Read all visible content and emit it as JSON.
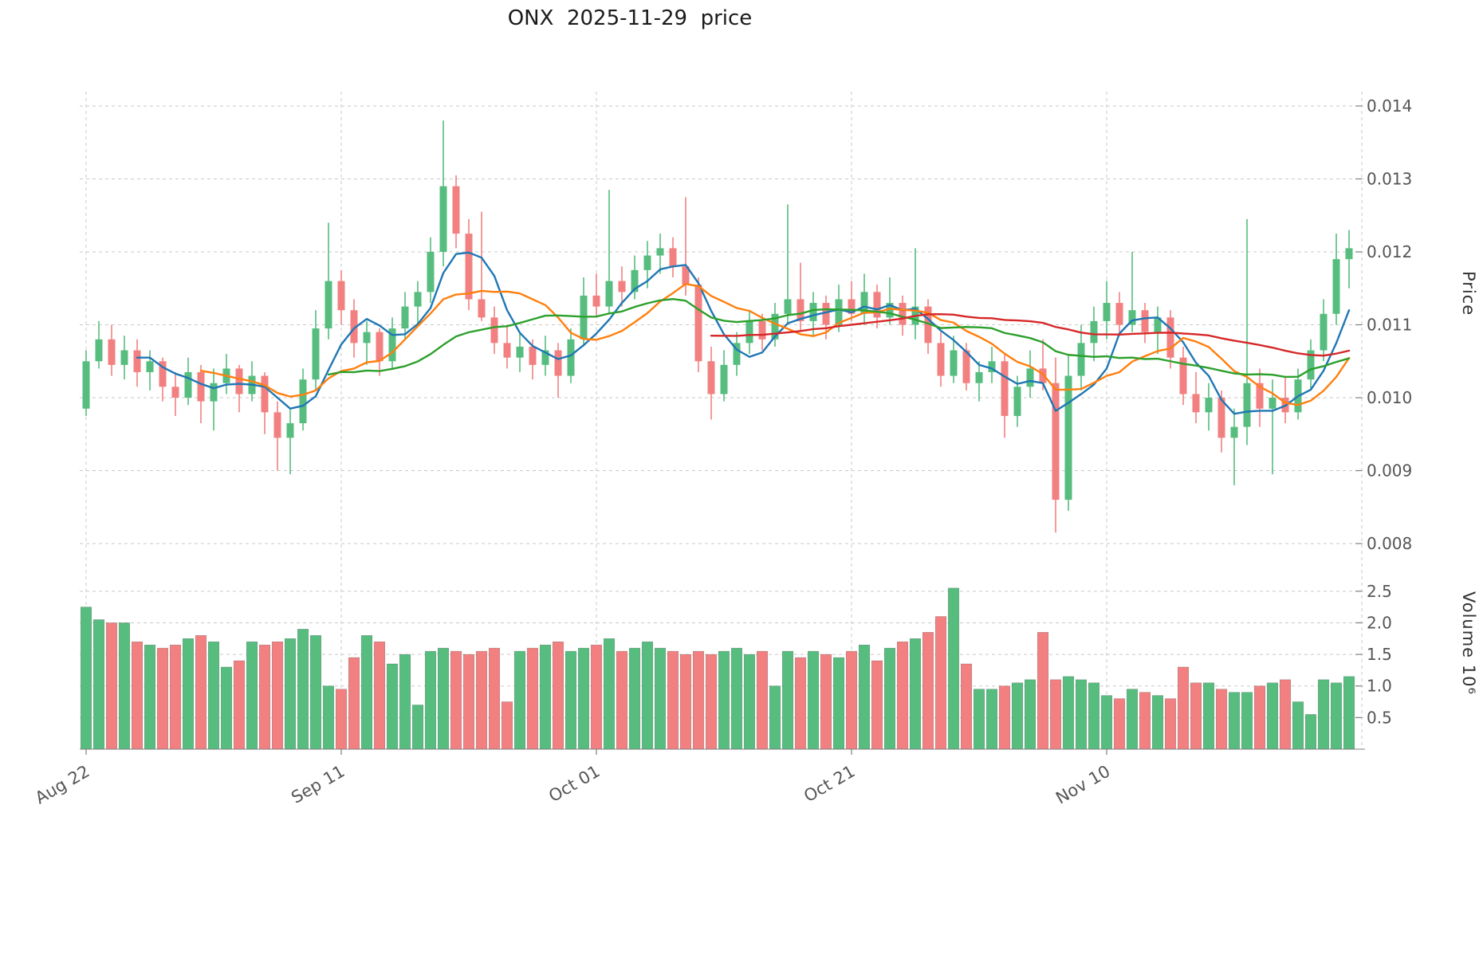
{
  "colors": {
    "up": "#56bd7f",
    "down": "#f28080",
    "ma5": "#1f77b4",
    "ma10": "#ff7f0e",
    "ma20": "#2ca02c",
    "ma50": "#d62728",
    "grid": "#c9c9c9",
    "axis_text": "#555555",
    "spine": "#808080",
    "background": "#ffffff"
  },
  "chart_data": {
    "type": "candlestick",
    "title": "ONX  2025-11-29  price",
    "symbol": "ONX",
    "as_of_date": "2025-11-29",
    "start_date": "2025-08-22",
    "frequency": "daily",
    "grid": "dashed",
    "price_axis": {
      "label": "Price",
      "side": "right",
      "ticks": [
        0.008,
        0.009,
        0.01,
        0.011,
        0.012,
        0.013,
        0.014
      ]
    },
    "volume_axis": {
      "label": "Volume  10⁶",
      "side": "right",
      "ticks": [
        0.5,
        1.0,
        1.5,
        2.0,
        2.5
      ],
      "unit": 1000000
    },
    "x_ticks": [
      {
        "day": 0,
        "label": "Aug 22"
      },
      {
        "day": 20,
        "label": "Sep 11"
      },
      {
        "day": 40,
        "label": "Oct 01"
      },
      {
        "day": 60,
        "label": "Oct 21"
      },
      {
        "day": 80,
        "label": "Nov 10"
      }
    ],
    "x_grid_extra_days": [
      100
    ],
    "price_unit": 0.0001,
    "moving_averages": [
      {
        "window": 5,
        "color_key": "ma5"
      },
      {
        "window": 10,
        "color_key": "ma10"
      },
      {
        "window": 20,
        "color_key": "ma20"
      },
      {
        "window": 50,
        "color_key": "ma50"
      }
    ],
    "open": [
      98.5,
      105,
      108,
      104.5,
      106.5,
      103.5,
      105,
      101.5,
      100,
      103.5,
      99.5,
      102,
      104,
      100.5,
      103,
      98,
      94.5,
      96.5,
      102.5,
      109.5,
      116,
      112,
      107.5,
      109,
      105,
      109.5,
      112.5,
      114.5,
      120,
      129,
      122.5,
      113.5,
      111,
      107.5,
      105.5,
      107,
      104.5,
      106.5,
      103,
      108,
      114,
      112.5,
      116,
      114.5,
      117.5,
      119.5,
      120.5,
      118,
      115.5,
      105,
      100.5,
      104.5,
      107.5,
      110.5,
      108,
      111.5,
      113.5,
      110.5,
      113,
      110,
      113.5,
      111.5,
      114.5,
      111,
      113,
      110,
      112.5,
      107.5,
      103,
      106.5,
      102,
      103.5,
      105,
      97.5,
      101.5,
      104,
      102,
      86,
      103,
      107.5,
      110.5,
      113,
      110,
      112,
      109,
      111,
      105.5,
      100.5,
      98,
      100,
      94.5,
      96,
      102,
      98.5,
      100,
      98,
      102.5,
      106.5,
      111.5,
      119
    ],
    "high": [
      106.5,
      110.5,
      110,
      108.5,
      108,
      106.5,
      105.5,
      103.5,
      105.5,
      104.5,
      104,
      106,
      104.5,
      105,
      103.5,
      99.5,
      98.5,
      104,
      112,
      124,
      117.5,
      113.5,
      110.5,
      109.5,
      111,
      114.5,
      116,
      122,
      138,
      130.5,
      124.5,
      125.5,
      112.5,
      110,
      109,
      108,
      108.5,
      107.5,
      109.5,
      116.5,
      117,
      128.5,
      118,
      119.5,
      121.5,
      122.5,
      122,
      127.5,
      116.5,
      107,
      106.5,
      109,
      112,
      111.5,
      113,
      126.5,
      118.5,
      114.5,
      114,
      115.5,
      116,
      117,
      115.5,
      116.5,
      114,
      120.5,
      113.5,
      109,
      108.5,
      107.5,
      105,
      107,
      106,
      103,
      106.5,
      108,
      105.5,
      106,
      110,
      112.5,
      116,
      114.5,
      120,
      113,
      112.5,
      112,
      107,
      103.5,
      102,
      101,
      98.5,
      124.5,
      104,
      102.5,
      103,
      104,
      108,
      113.5,
      122.5,
      123
    ],
    "low": [
      97.5,
      104,
      103,
      102.5,
      101.5,
      101,
      99.5,
      97.5,
      99,
      96.5,
      95.5,
      100.5,
      98,
      99.5,
      95,
      90,
      89.5,
      95.5,
      101,
      108,
      110,
      105.5,
      104.5,
      103,
      104,
      108,
      110,
      113,
      118,
      120.5,
      112,
      110.5,
      106,
      104,
      103.5,
      102.5,
      103,
      100,
      102,
      107,
      111,
      111.5,
      112.5,
      113.5,
      115,
      117,
      116.5,
      114,
      103.5,
      97,
      99.5,
      103,
      106,
      106.5,
      107,
      110,
      109,
      108.5,
      108,
      109,
      110.5,
      110,
      109.5,
      110,
      108.5,
      108,
      106,
      101.5,
      102,
      101,
      99.5,
      102,
      94.5,
      96,
      100,
      101,
      81.5,
      84.5,
      101,
      105,
      108,
      108.5,
      109,
      107.5,
      106,
      104,
      99,
      96.5,
      95.5,
      92.5,
      88,
      93.5,
      96,
      89.5,
      96.5,
      97,
      101,
      105,
      110,
      115
    ],
    "close": [
      105,
      108,
      104.5,
      106.5,
      103.5,
      105,
      101.5,
      100,
      103.5,
      99.5,
      102,
      104,
      100.5,
      103,
      98,
      94.5,
      96.5,
      102.5,
      109.5,
      116,
      112,
      107.5,
      109,
      105,
      109.5,
      112.5,
      114.5,
      120,
      129,
      122.5,
      113.5,
      111,
      107.5,
      105.5,
      107,
      104.5,
      106.5,
      103,
      108,
      114,
      112.5,
      116,
      114.5,
      117.5,
      119.5,
      120.5,
      118,
      115.5,
      105,
      100.5,
      104.5,
      107.5,
      110.5,
      108,
      111.5,
      113.5,
      110.5,
      113,
      110,
      113.5,
      111.5,
      114.5,
      111,
      113,
      110,
      112.5,
      107.5,
      103,
      106.5,
      102,
      103.5,
      105,
      97.5,
      101.5,
      104,
      102,
      86,
      103,
      107.5,
      110.5,
      113,
      110,
      112,
      109,
      111,
      105.5,
      100.5,
      98,
      100,
      94.5,
      96,
      102,
      98.5,
      100,
      98,
      102.5,
      106.5,
      111.5,
      119,
      120.5
    ],
    "volume_millions": [
      2.25,
      2.05,
      2.0,
      2.0,
      1.7,
      1.65,
      1.6,
      1.65,
      1.75,
      1.8,
      1.7,
      1.3,
      1.4,
      1.7,
      1.65,
      1.7,
      1.75,
      1.9,
      1.8,
      1.0,
      0.95,
      1.45,
      1.8,
      1.7,
      1.35,
      1.5,
      0.7,
      1.55,
      1.6,
      1.55,
      1.5,
      1.55,
      1.6,
      0.75,
      1.55,
      1.6,
      1.65,
      1.7,
      1.55,
      1.6,
      1.65,
      1.75,
      1.55,
      1.6,
      1.7,
      1.6,
      1.55,
      1.5,
      1.55,
      1.5,
      1.55,
      1.6,
      1.5,
      1.55,
      1.0,
      1.55,
      1.45,
      1.55,
      1.5,
      1.45,
      1.55,
      1.65,
      1.4,
      1.6,
      1.7,
      1.75,
      1.85,
      2.1,
      2.55,
      1.35,
      0.95,
      0.95,
      1.0,
      1.05,
      1.1,
      1.85,
      1.1,
      1.15,
      1.1,
      1.05,
      0.85,
      0.8,
      0.95,
      0.9,
      0.85,
      0.8,
      1.3,
      1.05,
      1.05,
      0.95,
      0.9,
      0.9,
      1.0,
      1.05,
      1.1,
      0.75,
      0.55,
      1.1,
      1.05,
      1.15
    ]
  }
}
